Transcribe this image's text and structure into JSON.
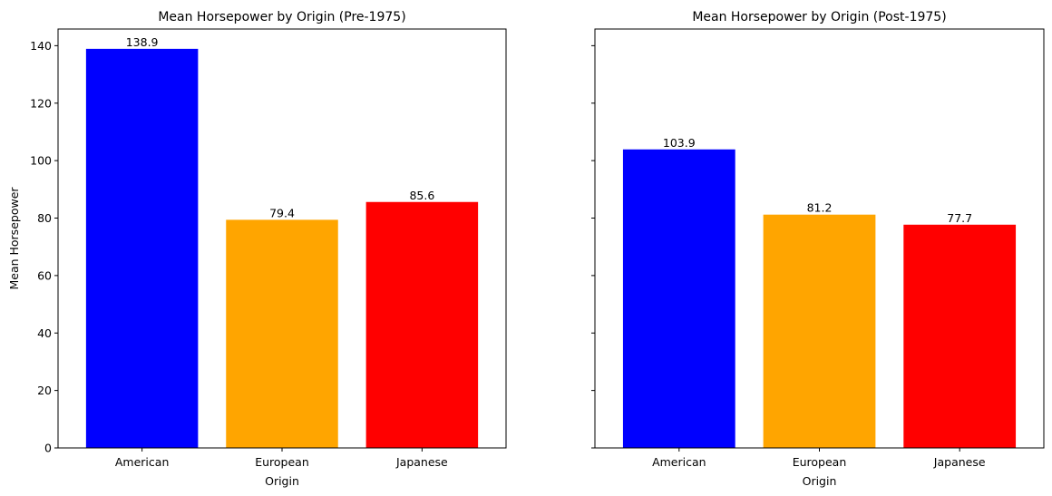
{
  "chart_data": [
    {
      "type": "bar",
      "title": "Mean Horsepower by Origin (Pre-1975)",
      "xlabel": "Origin",
      "ylabel": "Mean Horsepower",
      "categories": [
        "American",
        "European",
        "Japanese"
      ],
      "values": [
        138.9,
        79.4,
        85.6
      ],
      "data_labels": [
        "138.9",
        "79.4",
        "85.6"
      ],
      "colors": [
        "#0000ff",
        "#ffa500",
        "#ff0000"
      ],
      "ylim": [
        0,
        145.8
      ],
      "yticks": [
        0,
        20,
        40,
        60,
        80,
        100,
        120,
        140
      ],
      "show_ytick_labels": true,
      "grid": false,
      "legend": "none"
    },
    {
      "type": "bar",
      "title": "Mean Horsepower by Origin (Post-1975)",
      "xlabel": "Origin",
      "ylabel": "",
      "categories": [
        "American",
        "European",
        "Japanese"
      ],
      "values": [
        103.9,
        81.2,
        77.7
      ],
      "data_labels": [
        "103.9",
        "81.2",
        "77.7"
      ],
      "colors": [
        "#0000ff",
        "#ffa500",
        "#ff0000"
      ],
      "ylim": [
        0,
        145.8
      ],
      "yticks": [
        0,
        20,
        40,
        60,
        80,
        100,
        120,
        140
      ],
      "show_ytick_labels": false,
      "grid": false,
      "legend": "none"
    }
  ]
}
